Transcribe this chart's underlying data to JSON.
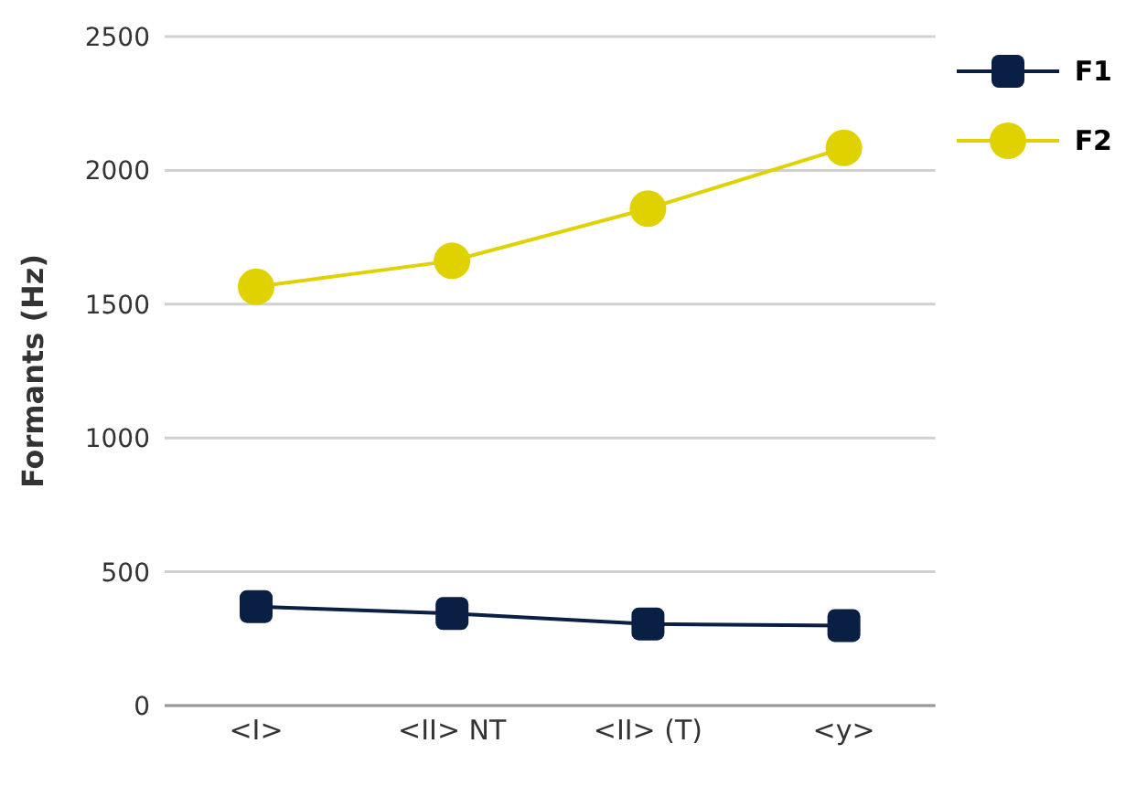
{
  "chart_data": {
    "type": "line",
    "ylabel": "Formants (Hz)",
    "categories": [
      "<I>",
      "<II> NT",
      "<II> (T)",
      "<y>"
    ],
    "series": [
      {
        "name": "F1",
        "color": "#0a1f44",
        "marker": "square",
        "values": [
          370,
          344,
          305,
          299
        ]
      },
      {
        "name": "F2",
        "color": "#e0d200",
        "marker": "circle",
        "values": [
          1565,
          1662,
          1857,
          2084
        ]
      }
    ],
    "ylim": [
      0,
      2500
    ],
    "yticks": [
      0,
      500,
      1000,
      1500,
      2000,
      2500
    ],
    "grid": "y",
    "legend": "top right"
  }
}
